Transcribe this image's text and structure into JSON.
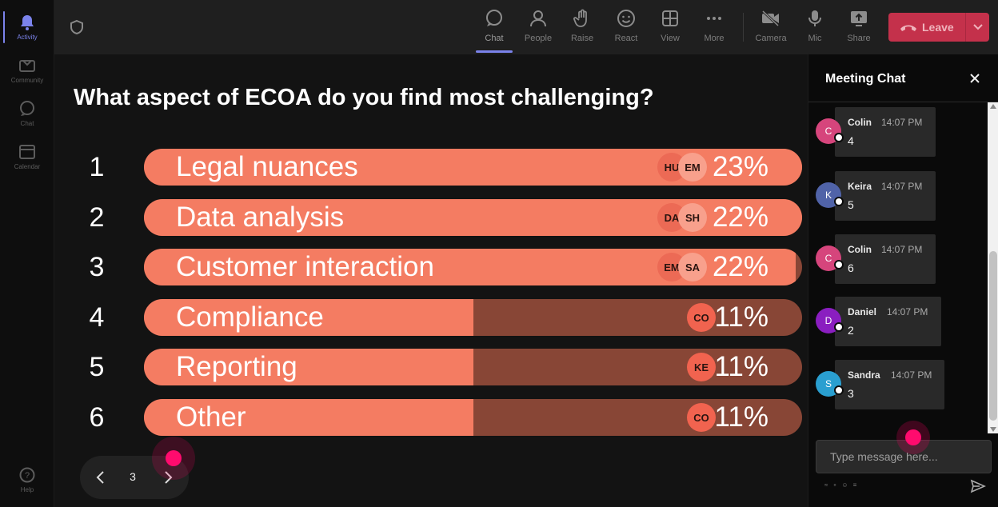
{
  "rail": [
    {
      "label": "Activity",
      "icon": "bell-icon"
    },
    {
      "label": "Community",
      "icon": "community-icon"
    },
    {
      "label": "Chat",
      "icon": "chat-icon"
    },
    {
      "label": "Calendar",
      "icon": "calendar-icon"
    },
    {
      "label": "Help",
      "icon": "help-icon"
    }
  ],
  "toolbar": {
    "chat": "Chat",
    "people": "People",
    "raise": "Raise",
    "react": "React",
    "view": "View",
    "more": "More",
    "camera": "Camera",
    "mic": "Mic",
    "share": "Share",
    "leave": "Leave"
  },
  "poll": {
    "question": "What aspect of ECOA do you find most challenging?",
    "options": [
      {
        "num": "1",
        "label": "Legal nuances",
        "pct": "23%",
        "fill": 1.0,
        "avatars": [
          "HU",
          "EM"
        ]
      },
      {
        "num": "2",
        "label": "Data analysis",
        "pct": "22%",
        "fill": 1.0,
        "avatars": [
          "DA",
          "SH"
        ]
      },
      {
        "num": "3",
        "label": "Customer interaction",
        "pct": "22%",
        "fill": 0.99,
        "avatars": [
          "EM",
          "SA"
        ]
      },
      {
        "num": "4",
        "label": "Compliance",
        "pct": "11%",
        "fill": 0.5,
        "avatars": [
          "CO"
        ]
      },
      {
        "num": "5",
        "label": "Reporting",
        "pct": "11%",
        "fill": 0.5,
        "avatars": [
          "KE"
        ]
      },
      {
        "num": "6",
        "label": "Other",
        "pct": "11%",
        "fill": 0.5,
        "avatars": [
          "CO"
        ]
      }
    ],
    "page": "3"
  },
  "chat": {
    "title": "Meeting Chat",
    "messages": [
      {
        "initial": "C",
        "name": "Colin",
        "time": "14:07 PM",
        "text": "4",
        "color": "#d6457c"
      },
      {
        "initial": "K",
        "name": "Keira",
        "time": "14:07 PM",
        "text": "5",
        "color": "#5063a8"
      },
      {
        "initial": "C",
        "name": "Colin",
        "time": "14:07 PM",
        "text": "6",
        "color": "#d6457c"
      },
      {
        "initial": "D",
        "name": "Daniel",
        "time": "14:07 PM",
        "text": "2",
        "color": "#8a1ec0"
      },
      {
        "initial": "S",
        "name": "Sandra",
        "time": "14:07 PM",
        "text": "3",
        "color": "#2a9fd0"
      }
    ],
    "placeholder": "Type message here..."
  },
  "colors": {
    "bar_fill": "#f47c62",
    "bar_track": "#884636",
    "leave": "#c4314b",
    "accent": "#7b83eb",
    "pointer": "#ff0b6e"
  }
}
